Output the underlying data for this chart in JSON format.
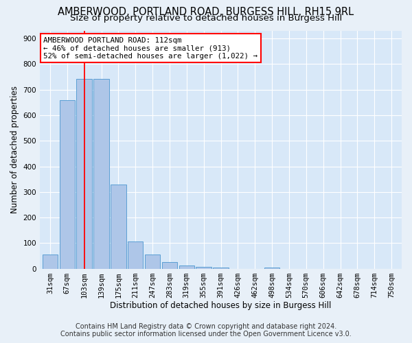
{
  "title": "AMBERWOOD, PORTLAND ROAD, BURGESS HILL, RH15 9RL",
  "subtitle": "Size of property relative to detached houses in Burgess Hill",
  "xlabel": "Distribution of detached houses by size in Burgess Hill",
  "ylabel": "Number of detached properties",
  "footnote1": "Contains HM Land Registry data © Crown copyright and database right 2024.",
  "footnote2": "Contains public sector information licensed under the Open Government Licence v3.0.",
  "bar_labels": [
    "31sqm",
    "67sqm",
    "103sqm",
    "139sqm",
    "175sqm",
    "211sqm",
    "247sqm",
    "283sqm",
    "319sqm",
    "355sqm",
    "391sqm",
    "426sqm",
    "462sqm",
    "498sqm",
    "534sqm",
    "570sqm",
    "606sqm",
    "642sqm",
    "678sqm",
    "714sqm",
    "750sqm"
  ],
  "bar_values": [
    55,
    660,
    743,
    743,
    330,
    107,
    55,
    27,
    13,
    8,
    5,
    0,
    0,
    5,
    0,
    0,
    0,
    0,
    0,
    0,
    0
  ],
  "bar_color": "#aec6e8",
  "bar_edge_color": "#5a9fd4",
  "vline_x": 2.0,
  "vline_color": "red",
  "annotation_text": "AMBERWOOD PORTLAND ROAD: 112sqm\n← 46% of detached houses are smaller (913)\n52% of semi-detached houses are larger (1,022) →",
  "annotation_box_color": "white",
  "annotation_box_edge": "red",
  "ylim": [
    0,
    930
  ],
  "yticks": [
    0,
    100,
    200,
    300,
    400,
    500,
    600,
    700,
    800,
    900
  ],
  "bg_color": "#e8f0f8",
  "plot_bg_color": "#d8e8f8",
  "grid_color": "white",
  "title_fontsize": 10.5,
  "subtitle_fontsize": 9.5,
  "axis_label_fontsize": 8.5,
  "tick_fontsize": 7.5,
  "footnote_fontsize": 7.0
}
